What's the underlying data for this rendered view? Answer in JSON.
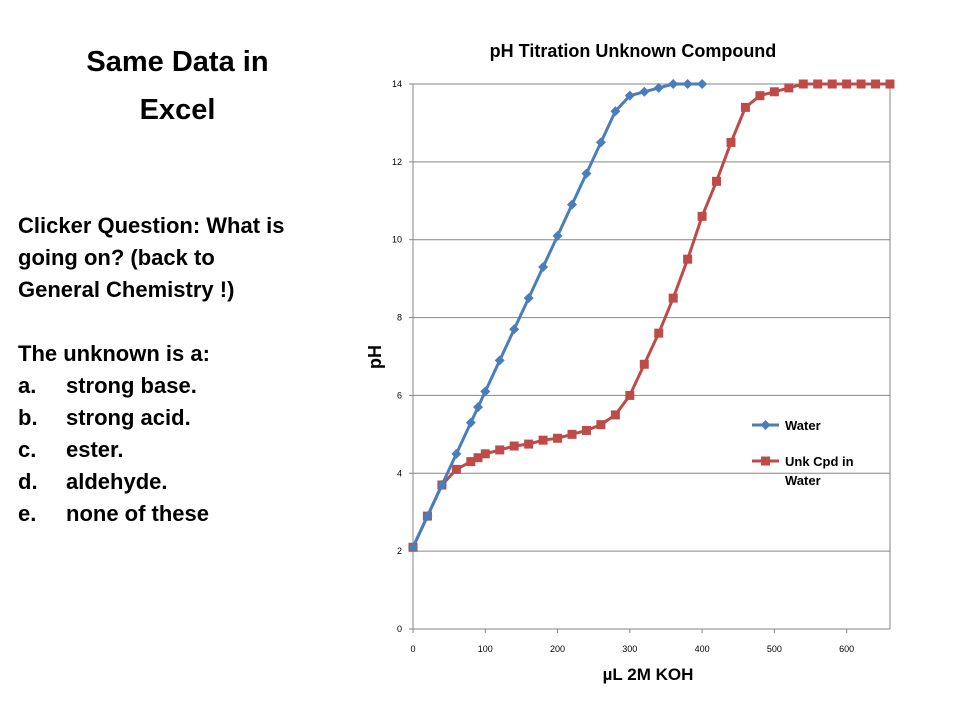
{
  "slide": {
    "title_line1": "Same Data in",
    "title_line2": "Excel"
  },
  "question": {
    "line1": "Clicker Question: What is",
    "line2": "going on?  (back to",
    "line3": "General Chemistry !)",
    "prompt": "The unknown is a:",
    "options": [
      {
        "letter": "a.",
        "text": "strong base."
      },
      {
        "letter": "b.",
        "text": "strong acid."
      },
      {
        "letter": "c.",
        "text": "ester."
      },
      {
        "letter": "d.",
        "text": "aldehyde."
      },
      {
        "letter": "e.",
        "text": "none of these"
      }
    ]
  },
  "chart_data": {
    "type": "line",
    "title": "pH Titration Unknown Compound",
    "xlabel": "µL 2M KOH",
    "ylabel": "pH",
    "xlim": [
      0,
      660
    ],
    "ylim": [
      0,
      14
    ],
    "xticks": [
      "0",
      "100",
      "200",
      "300",
      "400",
      "500",
      "600"
    ],
    "yticks": [
      "0",
      "2",
      "4",
      "6",
      "8",
      "10",
      "12",
      "14"
    ],
    "grid": "horizontal",
    "legend_position": "right",
    "series": [
      {
        "name": "Water",
        "color": "#4a7ebb",
        "marker": "diamond",
        "x": [
          0,
          20,
          40,
          60,
          80,
          90,
          100,
          120,
          140,
          160,
          180,
          200,
          220,
          240,
          260,
          280,
          300,
          320,
          340,
          360,
          380,
          400
        ],
        "y": [
          2.1,
          2.9,
          3.7,
          4.5,
          5.3,
          5.7,
          6.1,
          6.9,
          7.7,
          8.5,
          9.3,
          10.1,
          10.9,
          11.7,
          12.5,
          13.3,
          13.7,
          13.8,
          13.9,
          14.0,
          14.0,
          14.0
        ]
      },
      {
        "name": "Unk Cpd in Water",
        "legend_lines": [
          "Unk Cpd in",
          "Water"
        ],
        "color": "#be4b48",
        "marker": "square",
        "x": [
          0,
          20,
          40,
          60,
          80,
          90,
          100,
          120,
          140,
          160,
          180,
          200,
          220,
          240,
          260,
          280,
          300,
          320,
          340,
          360,
          380,
          400,
          420,
          440,
          460,
          480,
          500,
          520,
          540,
          560,
          580,
          600,
          620,
          640,
          660
        ],
        "y": [
          2.1,
          2.9,
          3.7,
          4.1,
          4.3,
          4.4,
          4.5,
          4.6,
          4.7,
          4.75,
          4.85,
          4.9,
          5.0,
          5.1,
          5.25,
          5.5,
          6.0,
          6.8,
          7.6,
          8.5,
          9.5,
          10.6,
          11.5,
          12.5,
          13.4,
          13.7,
          13.8,
          13.9,
          14.0,
          14.0,
          14.0,
          14.0,
          14.0,
          14.0,
          14.0
        ]
      }
    ]
  }
}
